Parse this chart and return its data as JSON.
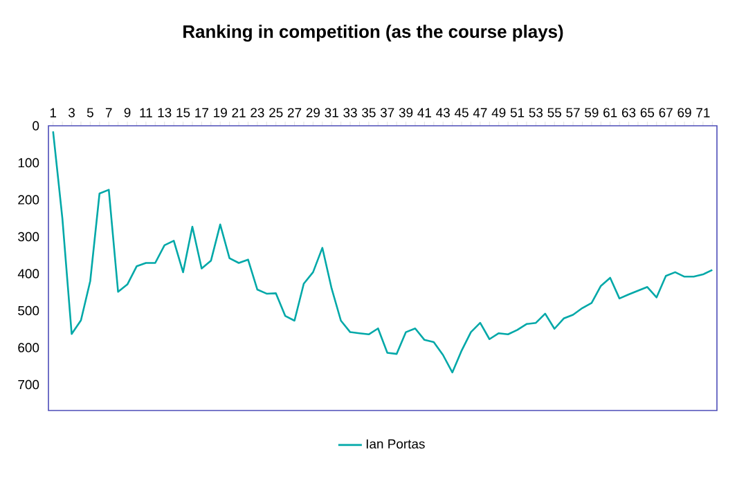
{
  "chart_data": {
    "type": "line",
    "title": "Ranking in competition (as the course plays)",
    "categories": [
      "1",
      null,
      "3",
      null,
      "5",
      null,
      "7",
      null,
      "9",
      null,
      "11",
      null,
      "13",
      null,
      "15",
      null,
      "17",
      null,
      "19",
      null,
      "21",
      null,
      "23",
      null,
      "25",
      null,
      "27",
      null,
      "29",
      null,
      "31",
      null,
      "33",
      null,
      "35",
      null,
      "37",
      null,
      "39",
      null,
      "41",
      null,
      "43",
      null,
      "45",
      null,
      "47",
      null,
      "49",
      null,
      "51",
      null,
      "53",
      null,
      "55",
      null,
      "57",
      null,
      "59",
      null,
      "61",
      null,
      "63",
      null,
      "65",
      null,
      "67",
      null,
      "69",
      null,
      "71",
      null
    ],
    "series": [
      {
        "name": "Ian Portas",
        "color": "#00a8a8",
        "values": [
          15,
          250,
          563,
          526,
          420,
          183,
          173,
          449,
          429,
          380,
          371,
          371,
          323,
          311,
          396,
          273,
          386,
          365,
          267,
          358,
          371,
          362,
          443,
          454,
          453,
          514,
          527,
          427,
          396,
          330,
          440,
          527,
          558,
          561,
          564,
          548,
          614,
          617,
          558,
          548,
          579,
          585,
          620,
          667,
          608,
          558,
          533,
          577,
          561,
          564,
          552,
          536,
          533,
          508,
          549,
          521,
          511,
          493,
          479,
          433,
          411,
          467,
          456,
          446,
          436,
          464,
          406,
          396,
          408,
          408,
          402,
          390
        ]
      }
    ],
    "ylim": [
      770,
      0
    ],
    "yticks": [
      0,
      100,
      200,
      300,
      400,
      500,
      600,
      700
    ],
    "legend": "bottom",
    "marker": "none",
    "line_style": "solid"
  }
}
